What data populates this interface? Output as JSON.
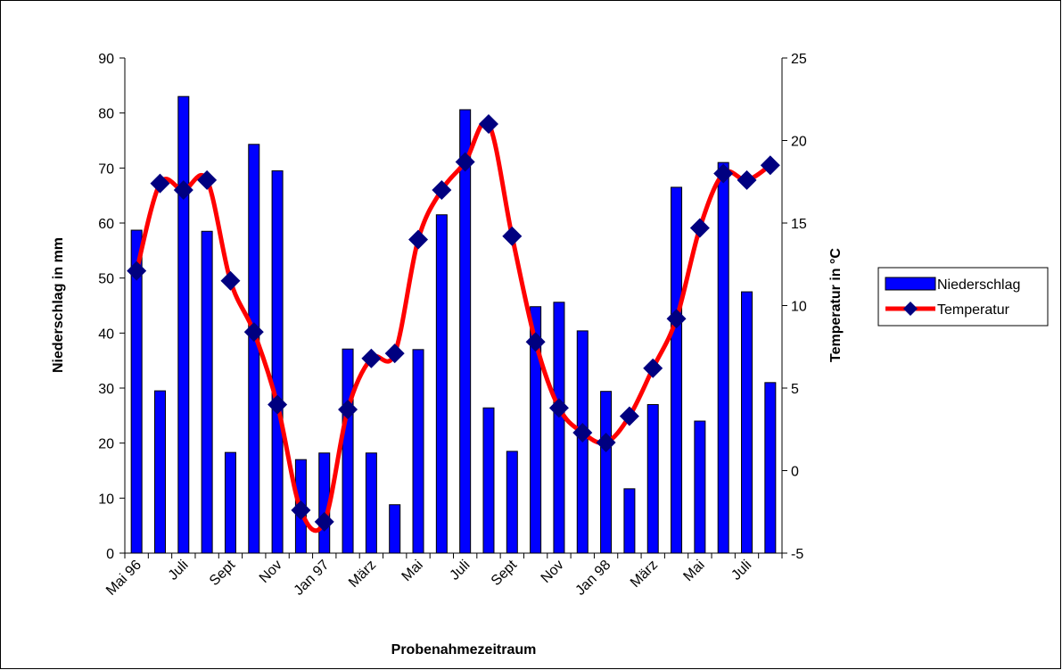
{
  "chart_data": {
    "type": "bar_line",
    "x_label": "Probenahmezeitraum",
    "y_label": "Niederschlag in mm",
    "y2_label": "Temperatur in °C",
    "categories": [
      "Mai 96",
      null,
      "Juli",
      null,
      "Sept",
      null,
      "Nov",
      null,
      "Jan 97",
      null,
      "März",
      null,
      "Mai",
      null,
      "Juli",
      null,
      "Sept",
      null,
      "Nov",
      null,
      "Jan 98",
      null,
      "März",
      null,
      "Mai",
      null,
      "Juli",
      null
    ],
    "series": [
      {
        "name": "Niederschlag",
        "type": "bar",
        "color": "#0000ff",
        "values": [
          58.7,
          29.5,
          83,
          58.5,
          18.3,
          74.3,
          69.5,
          17,
          18.2,
          37.1,
          18.2,
          8.8,
          37,
          61.5,
          80.6,
          26.4,
          18.5,
          44.8,
          45.6,
          40.4,
          29.4,
          11.7,
          27,
          66.5,
          24,
          71,
          47.5,
          31
        ]
      },
      {
        "name": "Temperatur",
        "type": "line",
        "axis": "y2",
        "color": "#ff0000",
        "marker_color": "#000080",
        "values": [
          12.1,
          17.4,
          17,
          17.6,
          11.5,
          8.4,
          4,
          -2.4,
          -3.1,
          3.7,
          6.8,
          7.1,
          14,
          17,
          18.7,
          21,
          14.2,
          7.8,
          3.8,
          2.3,
          1.7,
          3.3,
          6.2,
          9.2,
          14.7,
          18,
          17.6,
          18.5
        ]
      }
    ],
    "ylim": [
      0,
      90
    ],
    "yticks": [
      0,
      10,
      20,
      30,
      40,
      50,
      60,
      70,
      80,
      90
    ],
    "y2lim": [
      -5,
      25
    ],
    "y2ticks": [
      -5,
      0,
      5,
      10,
      15,
      20,
      25
    ],
    "legend": "right",
    "grid": false
  }
}
